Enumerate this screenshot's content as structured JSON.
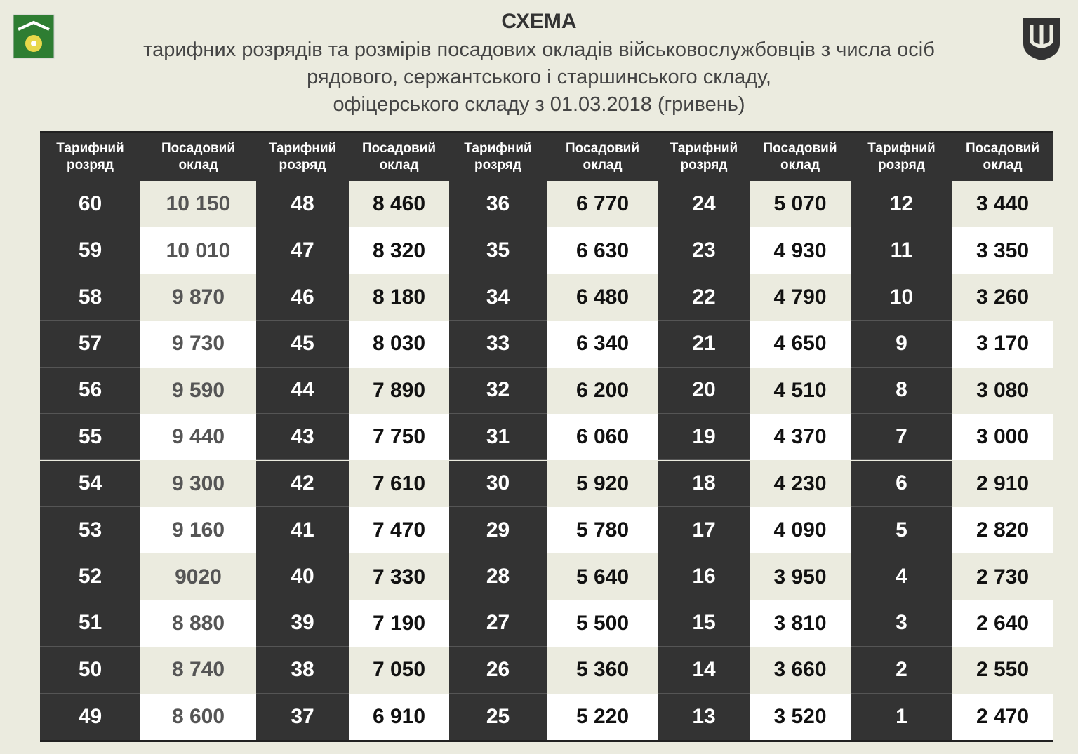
{
  "header": {
    "title": "СХЕМА",
    "subtitle": [
      "тарифних розрядів та розмірів посадових окладів військовослужбовців з числа осіб",
      "рядового, сержантського і  старшинського складу,",
      "офіцерського складу з 01.03.2018 (гривень)"
    ]
  },
  "table": {
    "columns": [
      "Тарифний розряд",
      "Посадовий оклад",
      "Тарифний розряд",
      "Посадовий оклад",
      "Тарифний розряд",
      "Посадовий оклад",
      "Тарифний розряд",
      "Посадовий оклад",
      "Тарифний розряд",
      "Посадовий оклад"
    ],
    "rows": [
      [
        "60",
        "10 150",
        "48",
        "8 460",
        "36",
        "6 770",
        "24",
        "5 070",
        "12",
        "3 440"
      ],
      [
        "59",
        "10 010",
        "47",
        "8 320",
        "35",
        "6 630",
        "23",
        "4 930",
        "11",
        "3 350"
      ],
      [
        "58",
        "9 870",
        "46",
        "8 180",
        "34",
        "6 480",
        "22",
        "4 790",
        "10",
        "3 260"
      ],
      [
        "57",
        "9 730",
        "45",
        "8 030",
        "33",
        "6 340",
        "21",
        "4 650",
        "9",
        "3 170"
      ],
      [
        "56",
        "9 590",
        "44",
        "7 890",
        "32",
        "6 200",
        "20",
        "4 510",
        "8",
        "3 080"
      ],
      [
        "55",
        "9 440",
        "43",
        "7 750",
        "31",
        "6 060",
        "19",
        "4 370",
        "7",
        "3 000"
      ],
      [
        "54",
        "9 300",
        "42",
        "7 610",
        "30",
        "5 920",
        "18",
        "4 230",
        "6",
        "2 910"
      ],
      [
        "53",
        "9 160",
        "41",
        "7 470",
        "29",
        "5 780",
        "17",
        "4 090",
        "5",
        "2 820"
      ],
      [
        "52",
        "9020",
        "40",
        "7 330",
        "28",
        "5 640",
        "16",
        "3 950",
        "4",
        "2 730"
      ],
      [
        "51",
        "8 880",
        "39",
        "7 190",
        "27",
        "5 500",
        "15",
        "3 810",
        "3",
        "2 640"
      ],
      [
        "50",
        "8 740",
        "38",
        "7 050",
        "26",
        "5 360",
        "14",
        "3 660",
        "2",
        "2 550"
      ],
      [
        "49",
        "8 600",
        "37",
        "6 910",
        "25",
        "5 220",
        "13",
        "3 520",
        "1",
        "2 470"
      ]
    ]
  }
}
